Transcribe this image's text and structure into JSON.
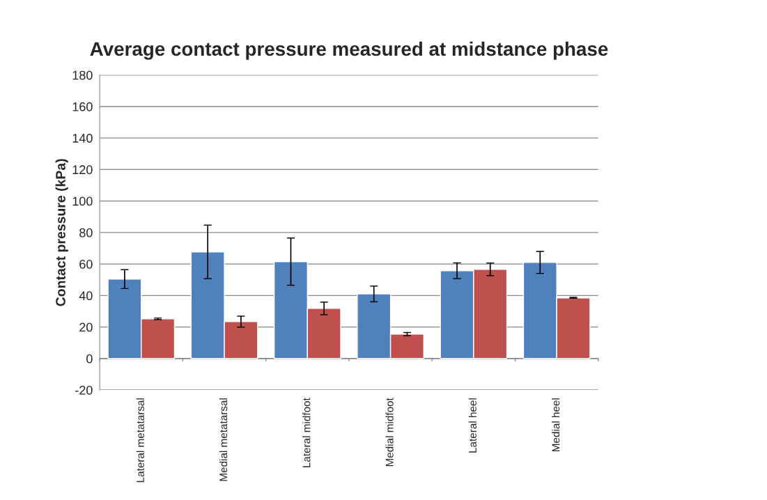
{
  "chart_data": {
    "type": "bar",
    "title": "Average contact pressure measured at midstance phase",
    "ylabel": "Contact pressure (kPa)",
    "categories": [
      "Lateral metatarsal",
      "Medial metatarsal",
      "Lateral midfoot",
      "Medial midfoot",
      "Lateral heel",
      "Medial heel"
    ],
    "series": [
      {
        "color": "#4f81bd",
        "values": [
          50.4,
          67.7,
          61.5,
          41,
          55.7,
          61
        ],
        "errors": [
          6,
          17,
          15,
          5,
          5,
          7
        ]
      },
      {
        "color": "#c0504d",
        "values": [
          25.2,
          23.4,
          31.8,
          15.5,
          56.6,
          38.5
        ],
        "errors": [
          0.5,
          3.5,
          4,
          1,
          4,
          0.3
        ]
      }
    ],
    "ylim": [
      -20,
      180
    ],
    "yticks": [
      -20,
      0,
      20,
      40,
      60,
      80,
      100,
      120,
      140,
      160,
      180
    ],
    "grid": "y"
  }
}
